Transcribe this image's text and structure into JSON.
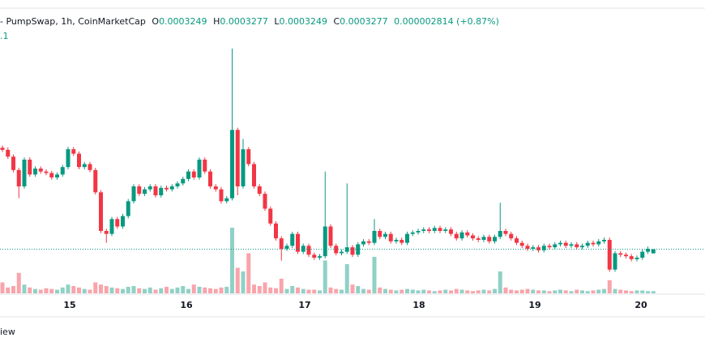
{
  "chart_data": {
    "type": "candlestick",
    "header": {
      "symbol": "- PumpSwap, 1h, CoinMarketCap",
      "o_label": "O",
      "o": "0.0003249",
      "h_label": "H",
      "h": "0.0003277",
      "l_label": "L",
      "l": "0.0003249",
      "c_label": "C",
      "c": "0.0003277",
      "change": "0.000002814 (+0.87%)",
      "second_line": ".1"
    },
    "footer": "iew",
    "categories": [
      "15",
      "16",
      "17",
      "18",
      "19",
      "20"
    ],
    "ylim": [
      0.00031,
      0.00049
    ],
    "vlim": [
      0,
      100
    ],
    "up_color": "#089981",
    "down_color": "#f23645",
    "candles": [
      [
        0.000396,
        0.0003975,
        0.0003931,
        0.0003946
      ],
      [
        0.0003946,
        0.0003961,
        0.0003885,
        0.00039
      ],
      [
        0.00039,
        0.0003915,
        0.0003795,
        0.000381
      ],
      [
        0.000381,
        0.0003825,
        0.000362,
        0.00037
      ],
      [
        0.00037,
        0.0003895,
        0.0003685,
        0.000388
      ],
      [
        0.000388,
        0.0003895,
        0.0003765,
        0.000378
      ],
      [
        0.000378,
        0.0003835,
        0.0003765,
        0.000382
      ],
      [
        0.000382,
        0.0003835,
        0.0003785,
        0.00038
      ],
      [
        0.00038,
        0.0003815,
        0.0003775,
        0.000379
      ],
      [
        0.000379,
        0.0003805,
        0.0003745,
        0.000376
      ],
      [
        0.000376,
        0.0003795,
        0.0003745,
        0.000378
      ],
      [
        0.000378,
        0.0003845,
        0.0003765,
        0.000383
      ],
      [
        0.000383,
        0.0003965,
        0.0003815,
        0.000395
      ],
      [
        0.000395,
        0.0003965,
        0.0003905,
        0.000392
      ],
      [
        0.000392,
        0.0003935,
        0.0003815,
        0.000383
      ],
      [
        0.000383,
        0.0003865,
        0.0003815,
        0.000385
      ],
      [
        0.000385,
        0.0003865,
        0.0003795,
        0.000381
      ],
      [
        0.000381,
        0.0003825,
        0.0003645,
        0.000366
      ],
      [
        0.000366,
        0.0003675,
        0.0003385,
        0.00034
      ],
      [
        0.00034,
        0.0003415,
        0.000332,
        0.000338
      ],
      [
        0.000338,
        0.0003495,
        0.0003365,
        0.000348
      ],
      [
        0.000348,
        0.0003495,
        0.0003415,
        0.000343
      ],
      [
        0.000343,
        0.0003515,
        0.0003415,
        0.00035
      ],
      [
        0.00035,
        0.0003615,
        0.0003485,
        0.00036
      ],
      [
        0.00036,
        0.0003715,
        0.0003585,
        0.00037
      ],
      [
        0.00037,
        0.0003715,
        0.0003635,
        0.000365
      ],
      [
        0.000365,
        0.0003695,
        0.0003635,
        0.000368
      ],
      [
        0.000368,
        0.0003715,
        0.0003665,
        0.00037
      ],
      [
        0.00037,
        0.0003715,
        0.0003625,
        0.000364
      ],
      [
        0.000364,
        0.0003705,
        0.0003625,
        0.000369
      ],
      [
        0.000369,
        0.0003705,
        0.0003665,
        0.000368
      ],
      [
        0.000368,
        0.0003715,
        0.0003665,
        0.00037
      ],
      [
        0.00037,
        0.0003735,
        0.0003685,
        0.000372
      ],
      [
        0.000372,
        0.0003765,
        0.0003705,
        0.000375
      ],
      [
        0.000375,
        0.0003815,
        0.0003735,
        0.00038
      ],
      [
        0.00038,
        0.0003815,
        0.0003745,
        0.000376
      ],
      [
        0.000376,
        0.0003895,
        0.0003745,
        0.000388
      ],
      [
        0.000388,
        0.0003895,
        0.0003785,
        0.00038
      ],
      [
        0.00038,
        0.0003815,
        0.0003685,
        0.00037
      ],
      [
        0.00037,
        0.0003715,
        0.0003665,
        0.000368
      ],
      [
        0.000368,
        0.0003695,
        0.0003585,
        0.00036
      ],
      [
        0.00036,
        0.0003635,
        0.0003585,
        0.000362
      ],
      [
        0.000362,
        0.0004627,
        0.0003605,
        0.000408
      ],
      [
        0.000408,
        0.0004095,
        0.000364,
        0.00037
      ],
      [
        0.00037,
        0.000402,
        0.0003685,
        0.000395
      ],
      [
        0.000395,
        0.0003965,
        0.0003835,
        0.000385
      ],
      [
        0.000385,
        0.0003865,
        0.0003685,
        0.00037
      ],
      [
        0.00037,
        0.0003715,
        0.0003635,
        0.000365
      ],
      [
        0.000365,
        0.0003665,
        0.0003535,
        0.000355
      ],
      [
        0.000355,
        0.0003565,
        0.0003435,
        0.000345
      ],
      [
        0.000345,
        0.0003465,
        0.0003335,
        0.000335
      ],
      [
        0.000335,
        0.0003365,
        0.00032,
        0.000328
      ],
      [
        0.000328,
        0.0003315,
        0.0003265,
        0.00033
      ],
      [
        0.00033,
        0.0003395,
        0.0003285,
        0.000338
      ],
      [
        0.000338,
        0.0003395,
        0.0003245,
        0.000326
      ],
      [
        0.000326,
        0.0003315,
        0.0003245,
        0.00033
      ],
      [
        0.00033,
        0.0003315,
        0.0003225,
        0.000324
      ],
      [
        0.000324,
        0.0003255,
        0.0003205,
        0.000322
      ],
      [
        0.000322,
        0.0003245,
        0.0003205,
        0.000323
      ],
      [
        0.000323,
        0.00038,
        0.0003215,
        0.000343
      ],
      [
        0.000343,
        0.0003445,
        0.0003285,
        0.00033
      ],
      [
        0.00033,
        0.0003315,
        0.0003235,
        0.000325
      ],
      [
        0.000325,
        0.0003275,
        0.0003235,
        0.000326
      ],
      [
        0.000326,
        0.000372,
        0.0003245,
        0.000329
      ],
      [
        0.000329,
        0.0003305,
        0.0003225,
        0.000324
      ],
      [
        0.000324,
        0.0003325,
        0.0003225,
        0.000331
      ],
      [
        0.000331,
        0.0003345,
        0.0003295,
        0.000333
      ],
      [
        0.000333,
        0.0003345,
        0.0003305,
        0.000332
      ],
      [
        0.000332,
        0.000348,
        0.0003305,
        0.00034
      ],
      [
        0.00034,
        0.0003415,
        0.0003345,
        0.000336
      ],
      [
        0.000336,
        0.0003395,
        0.0003345,
        0.000338
      ],
      [
        0.000338,
        0.0003395,
        0.0003315,
        0.000333
      ],
      [
        0.000333,
        0.0003355,
        0.0003315,
        0.000334
      ],
      [
        0.000334,
        0.0003355,
        0.0003305,
        0.000332
      ],
      [
        0.000332,
        0.0003395,
        0.0003305,
        0.000338
      ],
      [
        0.000338,
        0.0003405,
        0.0003365,
        0.000339
      ],
      [
        0.000339,
        0.0003415,
        0.0003375,
        0.00034
      ],
      [
        0.00034,
        0.0003425,
        0.0003385,
        0.000341
      ],
      [
        0.000341,
        0.0003425,
        0.0003385,
        0.00034
      ],
      [
        0.00034,
        0.0003435,
        0.0003385,
        0.000342
      ],
      [
        0.000342,
        0.0003435,
        0.0003385,
        0.00034
      ],
      [
        0.00034,
        0.0003425,
        0.0003385,
        0.000341
      ],
      [
        0.000341,
        0.0003425,
        0.0003365,
        0.000338
      ],
      [
        0.000338,
        0.0003395,
        0.0003335,
        0.000335
      ],
      [
        0.000335,
        0.0003405,
        0.0003335,
        0.000339
      ],
      [
        0.000339,
        0.0003405,
        0.0003355,
        0.000337
      ],
      [
        0.000337,
        0.0003385,
        0.0003335,
        0.000335
      ],
      [
        0.000335,
        0.0003365,
        0.0003325,
        0.000334
      ],
      [
        0.000334,
        0.0003375,
        0.0003325,
        0.000336
      ],
      [
        0.000336,
        0.0003375,
        0.0003315,
        0.000333
      ],
      [
        0.000333,
        0.0003375,
        0.0003315,
        0.000336
      ],
      [
        0.000336,
        0.000359,
        0.0003345,
        0.00034
      ],
      [
        0.00034,
        0.0003415,
        0.0003365,
        0.000338
      ],
      [
        0.000338,
        0.0003395,
        0.0003335,
        0.000335
      ],
      [
        0.000335,
        0.0003365,
        0.0003305,
        0.000332
      ],
      [
        0.000332,
        0.0003335,
        0.0003285,
        0.00033
      ],
      [
        0.00033,
        0.0003315,
        0.0003265,
        0.000328
      ],
      [
        0.000328,
        0.0003305,
        0.0003265,
        0.000329
      ],
      [
        0.000329,
        0.0003305,
        0.0003255,
        0.000327
      ],
      [
        0.000327,
        0.0003315,
        0.0003255,
        0.00033
      ],
      [
        0.00033,
        0.0003315,
        0.0003275,
        0.000329
      ],
      [
        0.000329,
        0.0003325,
        0.0003275,
        0.000331
      ],
      [
        0.000331,
        0.0003335,
        0.0003295,
        0.000332
      ],
      [
        0.000332,
        0.0003335,
        0.0003285,
        0.00033
      ],
      [
        0.00033,
        0.0003325,
        0.0003285,
        0.000331
      ],
      [
        0.000331,
        0.0003325,
        0.0003275,
        0.000329
      ],
      [
        0.000329,
        0.0003315,
        0.0003275,
        0.00033
      ],
      [
        0.00033,
        0.0003335,
        0.0003285,
        0.000332
      ],
      [
        0.000332,
        0.0003335,
        0.0003295,
        0.000331
      ],
      [
        0.000331,
        0.0003345,
        0.0003295,
        0.000333
      ],
      [
        0.000333,
        0.0003355,
        0.0003315,
        0.000334
      ],
      [
        0.000334,
        0.0003355,
        0.0003125,
        0.000314
      ],
      [
        0.000314,
        0.0003265,
        0.0003125,
        0.000325
      ],
      [
        0.000325,
        0.0003265,
        0.0003225,
        0.000324
      ],
      [
        0.000324,
        0.0003255,
        0.0003215,
        0.000323
      ],
      [
        0.000323,
        0.0003245,
        0.0003195,
        0.000321
      ],
      [
        0.000321,
        0.0003235,
        0.0003195,
        0.000322
      ],
      [
        0.000322,
        0.0003275,
        0.0003205,
        0.000326
      ],
      [
        0.000326,
        0.0003295,
        0.0003245,
        0.000328
      ],
      [
        0.0003249,
        0.0003277,
        0.0003249,
        0.0003277
      ]
    ],
    "volume": [
      15,
      8,
      10,
      28,
      12,
      8,
      6,
      5,
      7,
      6,
      5,
      8,
      12,
      10,
      8,
      6,
      5,
      15,
      12,
      10,
      8,
      7,
      6,
      9,
      10,
      7,
      6,
      8,
      5,
      7,
      9,
      6,
      8,
      10,
      6,
      12,
      9,
      8,
      7,
      6,
      8,
      9,
      90,
      35,
      30,
      55,
      12,
      10,
      15,
      8,
      7,
      20,
      6,
      10,
      8,
      6,
      5,
      5,
      4,
      45,
      8,
      6,
      5,
      40,
      12,
      10,
      6,
      5,
      50,
      8,
      6,
      5,
      4,
      5,
      6,
      5,
      4,
      5,
      4,
      3,
      4,
      5,
      4,
      6,
      5,
      4,
      3,
      4,
      5,
      4,
      6,
      30,
      8,
      5,
      4,
      5,
      6,
      5,
      4,
      4,
      3,
      4,
      5,
      4,
      3,
      5,
      4,
      3,
      4,
      5,
      6,
      18,
      6,
      5,
      4,
      3,
      4,
      4,
      3,
      3
    ]
  }
}
